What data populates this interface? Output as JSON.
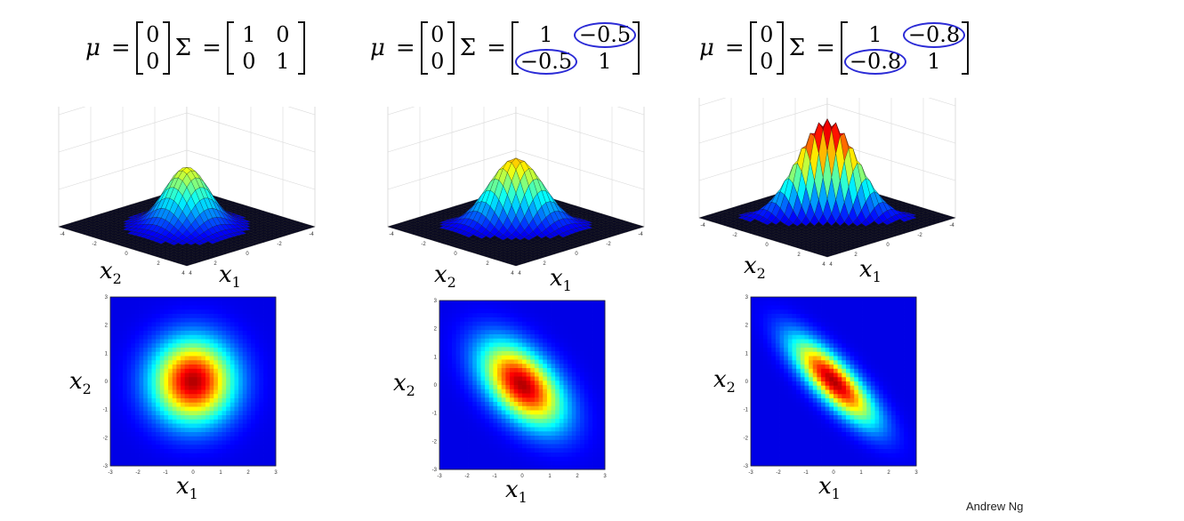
{
  "credit": "Andrew Ng",
  "symbols": {
    "mu": "μ",
    "sigma": "Σ",
    "equals": "="
  },
  "axis_labels": {
    "x1": {
      "var": "x",
      "sub": "1"
    },
    "x2": {
      "var": "x",
      "sub": "2"
    }
  },
  "colormap": "jet",
  "annotation_color": "#2b2bd6",
  "panels": [
    {
      "mu": [
        "0",
        "0"
      ],
      "sigma": [
        [
          "1",
          "0"
        ],
        [
          "0",
          "1"
        ]
      ],
      "circled": []
    },
    {
      "mu": [
        "0",
        "0"
      ],
      "sigma": [
        [
          "1",
          "−0.5"
        ],
        [
          "−0.5",
          "1"
        ]
      ],
      "circled": [
        "0-1",
        "1-0"
      ]
    },
    {
      "mu": [
        "0",
        "0"
      ],
      "sigma": [
        [
          "1",
          "−0.8"
        ],
        [
          "−0.8",
          "1"
        ]
      ],
      "circled": [
        "0-1",
        "1-0"
      ]
    }
  ],
  "chart_data": [
    {
      "type": "surface",
      "distribution": "bivariate normal",
      "mean": [
        0,
        0
      ],
      "covariance": [
        [
          1,
          0
        ],
        [
          0,
          1
        ]
      ],
      "xlim": [
        -4,
        4
      ],
      "ylim": [
        -4,
        4
      ],
      "zlim": [
        0,
        0.4
      ],
      "x_ticks": [
        "-4",
        "-2",
        "0",
        "2",
        "4"
      ],
      "y_ticks": [
        "-4",
        "-2",
        "0",
        "2",
        "4"
      ],
      "z_ticks": [
        "0",
        "0.1",
        "0.2",
        "0.3",
        "0.4"
      ],
      "grid": true
    },
    {
      "type": "surface",
      "distribution": "bivariate normal",
      "mean": [
        0,
        0
      ],
      "covariance": [
        [
          1,
          -0.5
        ],
        [
          -0.5,
          1
        ]
      ],
      "xlim": [
        -4,
        4
      ],
      "ylim": [
        -4,
        4
      ],
      "zlim": [
        0,
        0.4
      ],
      "x_ticks": [
        "-4",
        "-2",
        "0",
        "2",
        "4"
      ],
      "y_ticks": [
        "-4",
        "-2",
        "0",
        "2",
        "4"
      ],
      "z_ticks": [
        "0",
        "0.1",
        "0.2",
        "0.3",
        "0.4"
      ],
      "grid": true
    },
    {
      "type": "surface",
      "distribution": "bivariate normal",
      "mean": [
        0,
        0
      ],
      "covariance": [
        [
          1,
          -0.8
        ],
        [
          -0.8,
          1
        ]
      ],
      "xlim": [
        -4,
        4
      ],
      "ylim": [
        -4,
        4
      ],
      "zlim": [
        0,
        0.4
      ],
      "x_ticks": [
        "-4",
        "-2",
        "0",
        "2",
        "4"
      ],
      "y_ticks": [
        "-4",
        "-2",
        "0",
        "2",
        "4"
      ],
      "z_ticks": [
        "0",
        "0.1",
        "0.2",
        "0.3",
        "0.4"
      ],
      "grid": true
    },
    {
      "type": "heatmap",
      "distribution": "bivariate normal",
      "mean": [
        0,
        0
      ],
      "covariance": [
        [
          1,
          0
        ],
        [
          0,
          1
        ]
      ],
      "xlim": [
        -3,
        3
      ],
      "ylim": [
        -3,
        3
      ],
      "x_ticks": [
        "-3",
        "-2",
        "-1",
        "0",
        "1",
        "2",
        "3"
      ],
      "y_ticks": [
        "-3",
        "-2",
        "-1",
        "0",
        "1",
        "2",
        "3"
      ]
    },
    {
      "type": "heatmap",
      "distribution": "bivariate normal",
      "mean": [
        0,
        0
      ],
      "covariance": [
        [
          1,
          -0.5
        ],
        [
          -0.5,
          1
        ]
      ],
      "xlim": [
        -3,
        3
      ],
      "ylim": [
        -3,
        3
      ],
      "x_ticks": [
        "-3",
        "-2",
        "-1",
        "0",
        "1",
        "2",
        "3"
      ],
      "y_ticks": [
        "-3",
        "-2",
        "-1",
        "0",
        "1",
        "2",
        "3"
      ]
    },
    {
      "type": "heatmap",
      "distribution": "bivariate normal",
      "mean": [
        0,
        0
      ],
      "covariance": [
        [
          1,
          -0.8
        ],
        [
          -0.8,
          1
        ]
      ],
      "xlim": [
        -3,
        3
      ],
      "ylim": [
        -3,
        3
      ],
      "x_ticks": [
        "-3",
        "-2",
        "-1",
        "0",
        "1",
        "2",
        "3"
      ],
      "y_ticks": [
        "-3",
        "-2",
        "-1",
        "0",
        "1",
        "2",
        "3"
      ]
    }
  ]
}
